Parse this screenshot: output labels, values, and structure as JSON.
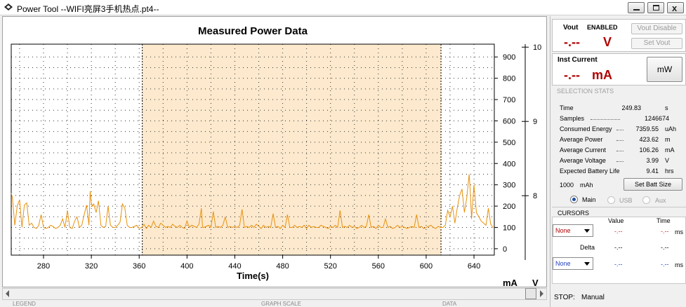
{
  "window": {
    "title": "Power Tool --WIFI亮屏3手机热点.pt4--",
    "close_glyph": "x"
  },
  "chart_data": {
    "type": "line",
    "title": "Measured Power Data",
    "xlabel": "Time(s)",
    "ylabel_left": "mA",
    "ylabel_right": "V",
    "xlim": [
      253,
      657
    ],
    "ylim_ma": [
      -30,
      960
    ],
    "ylim_v": [
      7.2,
      10.04
    ],
    "x_ticks": [
      "280",
      "320",
      "360",
      "400",
      "440",
      "480",
      "520",
      "560",
      "600",
      "640"
    ],
    "y_ticks_ma": [
      "0",
      "100",
      "200",
      "300",
      "400",
      "500",
      "600",
      "700",
      "800",
      "900"
    ],
    "y_ticks_v": [
      "8",
      "9",
      "10"
    ],
    "selection": [
      362.6,
      612.4
    ],
    "grid": true,
    "series": [
      {
        "color": "#e8920f",
        "x": [
          253,
          254,
          256,
          258,
          260,
          262,
          264,
          266,
          268,
          270,
          272,
          274,
          276,
          278,
          280,
          282,
          284,
          286,
          288,
          290,
          292,
          294,
          296,
          298,
          300,
          302,
          304,
          306,
          308,
          310,
          312,
          314,
          316,
          318,
          319,
          320,
          321,
          322,
          324,
          326,
          328,
          330,
          332,
          334,
          336,
          338,
          340,
          342,
          344,
          346,
          348,
          350,
          352,
          354,
          356,
          358,
          360,
          362,
          364,
          366,
          368,
          370,
          372,
          374,
          376,
          378,
          380,
          382,
          384,
          386,
          388,
          390,
          392,
          394,
          396,
          398,
          400,
          402,
          404,
          406,
          408,
          410,
          412,
          413,
          414,
          416,
          418,
          420,
          422,
          424,
          426,
          428,
          430,
          432,
          434,
          436,
          438,
          440,
          442,
          444,
          446,
          448,
          450,
          452,
          454,
          456,
          458,
          460,
          462,
          464,
          466,
          468,
          470,
          472,
          474,
          476,
          478,
          480,
          482,
          484,
          486,
          488,
          490,
          492,
          494,
          496,
          498,
          500,
          502,
          504,
          506,
          508,
          510,
          512,
          514,
          516,
          518,
          520,
          522,
          524,
          526,
          528,
          530,
          532,
          534,
          536,
          538,
          540,
          542,
          544,
          546,
          548,
          550,
          552,
          554,
          556,
          558,
          560,
          562,
          564,
          566,
          568,
          570,
          572,
          574,
          576,
          578,
          580,
          582,
          584,
          586,
          588,
          590,
          592,
          594,
          596,
          598,
          600,
          602,
          604,
          606,
          608,
          610,
          612,
          614,
          616,
          618,
          620,
          622,
          624,
          626,
          628,
          630,
          632,
          634,
          636,
          637,
          638,
          640,
          642,
          644,
          646,
          648,
          650,
          652,
          654,
          656
        ],
        "y": [
          260,
          240,
          110,
          200,
          230,
          100,
          205,
          215,
          110,
          120,
          100,
          95,
          110,
          160,
          100,
          95,
          100,
          110,
          105,
          95,
          100,
          110,
          140,
          100,
          180,
          100,
          95,
          130,
          150,
          100,
          110,
          160,
          205,
          110,
          270,
          215,
          200,
          210,
          170,
          225,
          110,
          100,
          105,
          200,
          110,
          100,
          100,
          110,
          125,
          210,
          190,
          110,
          100,
          100,
          105,
          110,
          95,
          100,
          115,
          95,
          110,
          100,
          130,
          105,
          100,
          120,
          110,
          100,
          105,
          100,
          115,
          105,
          100,
          110,
          100,
          95,
          130,
          100,
          110,
          105,
          100,
          115,
          190,
          100,
          100,
          105,
          110,
          100,
          175,
          100,
          105,
          100,
          110,
          150,
          100,
          105,
          100,
          105,
          100,
          110,
          185,
          100,
          105,
          100,
          110,
          100,
          115,
          105,
          95,
          110,
          100,
          105,
          100,
          165,
          100,
          105,
          95,
          110,
          100,
          160,
          100,
          100,
          110,
          100,
          105,
          100,
          110,
          95,
          110,
          100,
          105,
          100,
          100,
          110,
          105,
          100,
          95,
          105,
          100,
          110,
          100,
          180,
          100,
          105,
          100,
          110,
          100,
          105,
          95,
          100,
          110,
          100,
          105,
          160,
          100,
          105,
          95,
          110,
          100,
          100,
          140,
          100,
          105,
          95,
          100,
          110,
          100,
          105,
          100,
          95,
          100,
          105,
          100,
          160,
          100,
          105,
          95,
          100,
          105,
          110,
          100,
          95,
          105,
          100,
          100,
          110,
          180,
          150,
          200,
          120,
          190,
          250,
          280,
          170,
          240,
          350,
          260,
          140,
          300,
          170,
          150,
          130,
          120,
          110,
          190,
          115,
          100
        ]
      }
    ]
  },
  "vout": {
    "label": "Vout",
    "state": "ENABLED",
    "value": "-.--",
    "unit": "V",
    "btn_disable": "Vout Disable",
    "btn_set": "Set Vout"
  },
  "inst": {
    "label": "Inst Current",
    "value": "-.--",
    "unit": "mA",
    "btn_mw": "mW"
  },
  "stats": {
    "section": "SELECTION STATS",
    "rows": [
      {
        "label": "Time",
        "value": "249.83",
        "unit": "s"
      },
      {
        "label": "Samples",
        "value": "1246674",
        "unit": ""
      },
      {
        "label": "Consumed Energy",
        "value": "7359.55",
        "unit": "uAh"
      },
      {
        "label": "Average Power",
        "value": "423.62",
        "unit": "m"
      },
      {
        "label": "Average Current",
        "value": "106.26",
        "unit": "mA"
      },
      {
        "label": "Average Voltage",
        "value": "3.99",
        "unit": "V"
      },
      {
        "label": "Expected Battery Life",
        "value": "9.41",
        "unit": "hrs"
      }
    ],
    "batt_value": "1000",
    "batt_unit": "mAh",
    "btn_batt": "Set Batt Size",
    "radio_main": "Main",
    "radio_usb": "USB",
    "radio_aux": "Aux"
  },
  "cursors": {
    "section": "CURSORS",
    "col_value": "Value",
    "col_time": "Time",
    "row1_select": "None",
    "row1_value": "-.--",
    "row1_time": "-.--",
    "row1_unit": "ms",
    "delta_label": "Delta",
    "delta_value": "-.--",
    "delta_time": "-.--",
    "row2_select": "None",
    "row2_value": "-.--",
    "row2_time": "-.--",
    "row2_unit": "ms"
  },
  "stop": {
    "label": "STOP:",
    "value": "Manual"
  },
  "bottom": {
    "legend": "LEGEND",
    "graph_scale": "GRAPH SCALE",
    "data": "DATA"
  }
}
